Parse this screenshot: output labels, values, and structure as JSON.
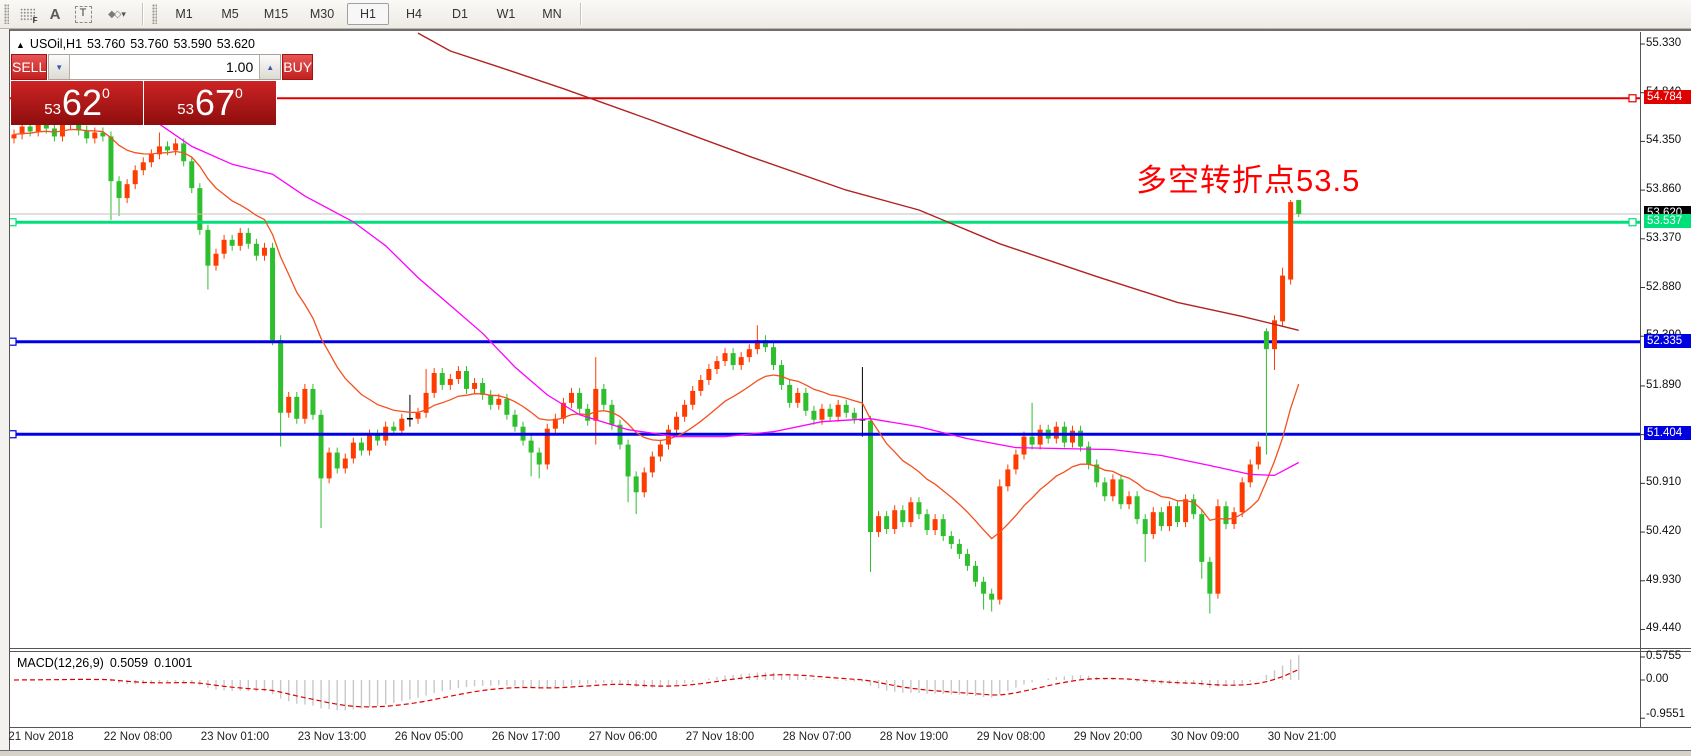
{
  "toolbar": {
    "icons": [
      {
        "name": "order-grid-icon",
        "glyph": "F"
      },
      {
        "name": "text-a-icon",
        "glyph": "A"
      },
      {
        "name": "text-label-icon",
        "glyph": "T"
      },
      {
        "name": "shapes-icon",
        "glyph": "◆◇"
      },
      {
        "name": "shapes-dropdown-caret",
        "glyph": "▾"
      }
    ],
    "timeframes": [
      {
        "label": "M1",
        "active": false
      },
      {
        "label": "M5",
        "active": false
      },
      {
        "label": "M15",
        "active": false
      },
      {
        "label": "M30",
        "active": false
      },
      {
        "label": "H1",
        "active": true
      },
      {
        "label": "H4",
        "active": false
      },
      {
        "label": "D1",
        "active": false
      },
      {
        "label": "W1",
        "active": false
      },
      {
        "label": "MN",
        "active": false
      }
    ]
  },
  "chart_header": {
    "arrow": "▲",
    "symbol": "USOil,H1",
    "open": "53.760",
    "high": "53.760",
    "low": "53.590",
    "close": "53.620"
  },
  "trade_panel": {
    "sell_label": "SELL",
    "buy_label": "BUY",
    "volume": "1.00",
    "spin_down": "▼",
    "spin_up": "▲",
    "sell_price": {
      "small": "53",
      "big": "62",
      "sup": "0"
    },
    "buy_price": {
      "small": "53",
      "big": "67",
      "sup": "0"
    }
  },
  "annotation": {
    "text": "多空转折点53.5",
    "color": "#FF0000"
  },
  "price_axis": {
    "ticks": [
      "55.330",
      "54.840",
      "54.350",
      "53.860",
      "53.370",
      "52.880",
      "52.390",
      "51.890",
      "51.400",
      "50.910",
      "50.420",
      "49.930",
      "49.440"
    ],
    "markers": [
      {
        "value": "54.784",
        "price": 54.784,
        "bg": "#DF0000",
        "fg": "#FFFFFF",
        "name": "resistance-price-label"
      },
      {
        "value": "53.620",
        "price": 53.62,
        "bg": "#000000",
        "fg": "#FFFFFF",
        "name": "last-price-label"
      },
      {
        "value": "53.537",
        "price": 53.537,
        "bg": "#00E07A",
        "fg": "#FFFFFF",
        "name": "pivot-price-label"
      },
      {
        "value": "52.335",
        "price": 52.335,
        "bg": "#0000E0",
        "fg": "#FFFFFF",
        "name": "support1-price-label"
      },
      {
        "value": "51.404",
        "price": 51.404,
        "bg": "#0000E0",
        "fg": "#FFFFFF",
        "name": "support2-price-label"
      }
    ]
  },
  "time_axis": {
    "labels": [
      "21 Nov 2018",
      "22 Nov 08:00",
      "23 Nov 01:00",
      "23 Nov 13:00",
      "26 Nov 05:00",
      "26 Nov 17:00",
      "27 Nov 06:00",
      "27 Nov 18:00",
      "28 Nov 07:00",
      "28 Nov 19:00",
      "29 Nov 08:00",
      "29 Nov 20:00",
      "30 Nov 09:00",
      "30 Nov 21:00"
    ]
  },
  "macd_panel": {
    "label": "MACD(12,26,9)",
    "value": "0.5059",
    "signal_value": "0.1001",
    "scale_labels": [
      "0.5755",
      "0.00",
      "-0.9551"
    ]
  },
  "chart_data": {
    "type": "candlestick",
    "title": "USOil,H1",
    "symbol": "USOil",
    "timeframe": "H1",
    "ohlc_current": {
      "open": 53.76,
      "high": 53.76,
      "low": 53.59,
      "close": 53.62
    },
    "ylim": [
      49.25,
      55.45
    ],
    "price_ticks": [
      55.33,
      54.84,
      54.35,
      53.86,
      53.37,
      52.88,
      52.39,
      51.89,
      51.4,
      50.91,
      50.42,
      49.93,
      49.44
    ],
    "colors": {
      "bull": "#FF3C00",
      "bear": "#2EBE2E",
      "doji": "#000000",
      "ma_fast": "#F4511E",
      "ma_mid": "#FF00FF",
      "ma_slow": "#B22222",
      "hist": "#C8C8C8",
      "signal": "#DF0000",
      "last_line": "#C0C0C0",
      "hline_red": "#DF0000",
      "hline_green": "#00E07A",
      "hline_blue": "#0000E6"
    },
    "hlines": [
      {
        "price": 54.784,
        "color": "#DF0000",
        "width": 2,
        "name": "resistance-line"
      },
      {
        "price": 53.62,
        "color": "#C0C0C0",
        "width": 1,
        "name": "last-price-line"
      },
      {
        "price": 53.537,
        "color": "#00E07A",
        "width": 3,
        "name": "pivot-line"
      },
      {
        "price": 52.335,
        "color": "#0000E6",
        "width": 3,
        "name": "support-line-1"
      },
      {
        "price": 51.404,
        "color": "#0000E6",
        "width": 3,
        "name": "support-line-2"
      }
    ],
    "ma_fast_period": 15,
    "ma_mid_points": [
      [
        17,
        54.58
      ],
      [
        22,
        54.3
      ],
      [
        27,
        54.12
      ],
      [
        32,
        54.02
      ],
      [
        36,
        53.8
      ],
      [
        42,
        53.54
      ],
      [
        46,
        53.3
      ],
      [
        50,
        52.98
      ],
      [
        54,
        52.7
      ],
      [
        58,
        52.42
      ],
      [
        62,
        52.08
      ],
      [
        66,
        51.8
      ],
      [
        70,
        51.6
      ],
      [
        76,
        51.45
      ],
      [
        82,
        51.38
      ],
      [
        88,
        51.38
      ],
      [
        94,
        51.43
      ],
      [
        100,
        51.53
      ],
      [
        106,
        51.56
      ],
      [
        112,
        51.48
      ],
      [
        118,
        51.36
      ],
      [
        124,
        51.27
      ],
      [
        130,
        51.26
      ],
      [
        136,
        51.25
      ],
      [
        142,
        51.19
      ],
      [
        148,
        51.09
      ],
      [
        153,
        51.0
      ],
      [
        156,
        50.99
      ],
      [
        159,
        51.12
      ]
    ],
    "ma_slow_points": [
      [
        50,
        55.44
      ],
      [
        54,
        55.26
      ],
      [
        60,
        55.1
      ],
      [
        68,
        54.88
      ],
      [
        79,
        54.56
      ],
      [
        91,
        54.2
      ],
      [
        103,
        53.86
      ],
      [
        112,
        53.66
      ],
      [
        122,
        53.32
      ],
      [
        134,
        52.99
      ],
      [
        144,
        52.73
      ],
      [
        152,
        52.59
      ],
      [
        157,
        52.49
      ],
      [
        159,
        52.45
      ]
    ],
    "macd": {
      "fast": 12,
      "slow": 26,
      "signal": 9,
      "current": 0.5059,
      "signal_current": 0.1001,
      "scale_max": 0.5755,
      "scale_min": -0.9551
    },
    "candles": [
      [
        54.38,
        54.47,
        54.33,
        54.42
      ],
      [
        54.42,
        54.55,
        54.37,
        54.5
      ],
      [
        54.5,
        54.55,
        54.4,
        54.45
      ],
      [
        54.45,
        54.6,
        54.4,
        54.55
      ],
      [
        54.55,
        54.6,
        54.43,
        54.48
      ],
      [
        54.48,
        54.53,
        54.35,
        54.4
      ],
      [
        54.4,
        54.57,
        54.35,
        54.52
      ],
      [
        54.52,
        54.63,
        54.47,
        54.58
      ],
      [
        54.58,
        54.63,
        54.41,
        54.46
      ],
      [
        54.46,
        54.51,
        54.33,
        54.38
      ],
      [
        54.38,
        54.49,
        54.33,
        54.44
      ],
      [
        54.44,
        54.49,
        54.35,
        54.4
      ],
      [
        54.4,
        54.45,
        53.56,
        53.95
      ],
      [
        53.95,
        54.0,
        53.6,
        53.78
      ],
      [
        53.78,
        53.97,
        53.73,
        53.92
      ],
      [
        53.92,
        54.11,
        53.87,
        54.06
      ],
      [
        54.06,
        54.19,
        54.01,
        54.14
      ],
      [
        54.14,
        54.27,
        54.09,
        54.22
      ],
      [
        54.22,
        54.44,
        54.17,
        54.3
      ],
      [
        54.3,
        54.35,
        54.21,
        54.26
      ],
      [
        54.26,
        54.38,
        54.21,
        54.33
      ],
      [
        54.33,
        54.38,
        54.1,
        54.15
      ],
      [
        54.15,
        54.2,
        53.83,
        53.88
      ],
      [
        53.88,
        53.93,
        53.41,
        53.46
      ],
      [
        53.46,
        53.51,
        52.86,
        53.1
      ],
      [
        53.1,
        53.27,
        53.05,
        53.22
      ],
      [
        53.22,
        53.41,
        53.17,
        53.36
      ],
      [
        53.36,
        53.41,
        53.25,
        53.3
      ],
      [
        53.3,
        53.48,
        53.25,
        53.43
      ],
      [
        53.43,
        53.48,
        53.27,
        53.32
      ],
      [
        53.32,
        53.37,
        53.15,
        53.2
      ],
      [
        53.2,
        53.33,
        53.15,
        53.28
      ],
      [
        53.28,
        53.33,
        52.3,
        52.35
      ],
      [
        52.35,
        52.4,
        51.28,
        51.62
      ],
      [
        51.62,
        51.83,
        51.57,
        51.78
      ],
      [
        51.78,
        51.83,
        51.51,
        51.56
      ],
      [
        51.56,
        51.91,
        51.51,
        51.86
      ],
      [
        51.86,
        51.91,
        51.55,
        51.6
      ],
      [
        51.6,
        51.65,
        50.46,
        50.96
      ],
      [
        50.96,
        51.27,
        50.91,
        51.22
      ],
      [
        51.22,
        51.27,
        51.01,
        51.06
      ],
      [
        51.06,
        51.21,
        51.01,
        51.16
      ],
      [
        51.16,
        51.37,
        51.11,
        51.32
      ],
      [
        51.32,
        51.37,
        51.19,
        51.24
      ],
      [
        51.24,
        51.45,
        51.19,
        51.4
      ],
      [
        51.4,
        51.45,
        51.29,
        51.34
      ],
      [
        51.34,
        51.53,
        51.29,
        51.48
      ],
      [
        51.48,
        51.53,
        51.39,
        51.44
      ],
      [
        51.44,
        51.61,
        51.39,
        51.56
      ],
      [
        51.56,
        51.8,
        51.48,
        51.56
      ],
      [
        51.56,
        51.67,
        51.51,
        51.62
      ],
      [
        51.62,
        52.06,
        51.57,
        51.82
      ],
      [
        51.82,
        52.07,
        51.77,
        52.02
      ],
      [
        52.02,
        52.07,
        51.85,
        51.9
      ],
      [
        51.9,
        52.01,
        51.85,
        51.96
      ],
      [
        51.96,
        52.09,
        51.91,
        52.04
      ],
      [
        52.04,
        52.09,
        51.81,
        51.86
      ],
      [
        51.86,
        51.97,
        51.81,
        51.92
      ],
      [
        51.92,
        51.97,
        51.75,
        51.8
      ],
      [
        51.8,
        51.85,
        51.65,
        51.7
      ],
      [
        51.7,
        51.81,
        51.65,
        51.76
      ],
      [
        51.76,
        51.81,
        51.55,
        51.6
      ],
      [
        51.6,
        51.65,
        51.43,
        51.48
      ],
      [
        51.48,
        51.53,
        51.29,
        51.34
      ],
      [
        51.34,
        51.39,
        50.98,
        51.22
      ],
      [
        51.22,
        51.27,
        50.96,
        51.1
      ],
      [
        51.1,
        51.51,
        51.05,
        51.46
      ],
      [
        51.46,
        51.61,
        51.41,
        51.56
      ],
      [
        51.56,
        51.77,
        51.51,
        51.72
      ],
      [
        51.72,
        51.87,
        51.67,
        51.82
      ],
      [
        51.82,
        51.87,
        51.61,
        51.66
      ],
      [
        51.66,
        51.71,
        51.49,
        51.54
      ],
      [
        51.54,
        52.18,
        51.3,
        51.86
      ],
      [
        51.86,
        51.91,
        51.65,
        51.7
      ],
      [
        51.7,
        51.75,
        51.45,
        51.5
      ],
      [
        51.5,
        51.55,
        51.25,
        51.3
      ],
      [
        51.3,
        51.35,
        50.72,
        50.98
      ],
      [
        50.98,
        51.03,
        50.6,
        50.82
      ],
      [
        50.82,
        51.07,
        50.77,
        51.02
      ],
      [
        51.02,
        51.23,
        50.97,
        51.18
      ],
      [
        51.18,
        51.35,
        51.13,
        51.3
      ],
      [
        51.3,
        51.5,
        51.25,
        51.45
      ],
      [
        51.45,
        51.63,
        51.4,
        51.58
      ],
      [
        51.58,
        51.75,
        51.53,
        51.7
      ],
      [
        51.7,
        51.89,
        51.65,
        51.84
      ],
      [
        51.84,
        52.0,
        51.79,
        51.95
      ],
      [
        51.95,
        52.11,
        51.9,
        52.06
      ],
      [
        52.06,
        52.19,
        52.01,
        52.14
      ],
      [
        52.14,
        52.27,
        52.09,
        52.22
      ],
      [
        52.22,
        52.27,
        52.05,
        52.1
      ],
      [
        52.1,
        52.23,
        52.05,
        52.18
      ],
      [
        52.18,
        52.31,
        52.13,
        52.26
      ],
      [
        52.26,
        52.5,
        52.21,
        52.35
      ],
      [
        52.35,
        52.4,
        52.23,
        52.28
      ],
      [
        52.28,
        52.33,
        52.05,
        52.1
      ],
      [
        52.1,
        52.15,
        51.85,
        51.9
      ],
      [
        51.9,
        51.95,
        51.67,
        51.72
      ],
      [
        51.72,
        51.87,
        51.67,
        51.82
      ],
      [
        51.82,
        51.87,
        51.59,
        51.64
      ],
      [
        51.64,
        51.69,
        51.5,
        51.55
      ],
      [
        51.55,
        51.71,
        51.5,
        51.66
      ],
      [
        51.66,
        51.71,
        51.53,
        51.58
      ],
      [
        51.58,
        51.75,
        51.53,
        51.7
      ],
      [
        51.7,
        51.75,
        51.57,
        51.62
      ],
      [
        51.62,
        51.67,
        51.51,
        51.56
      ],
      [
        51.55,
        52.08,
        51.38,
        51.55
      ],
      [
        51.54,
        51.59,
        50.02,
        50.42
      ],
      [
        50.42,
        50.63,
        50.37,
        50.58
      ],
      [
        50.58,
        50.63,
        50.4,
        50.45
      ],
      [
        50.45,
        50.69,
        50.4,
        50.64
      ],
      [
        50.64,
        50.69,
        50.47,
        50.52
      ],
      [
        50.52,
        50.77,
        50.47,
        50.72
      ],
      [
        50.72,
        50.77,
        50.55,
        50.6
      ],
      [
        50.6,
        50.65,
        50.39,
        50.44
      ],
      [
        50.44,
        50.6,
        50.39,
        50.55
      ],
      [
        50.55,
        50.6,
        50.33,
        50.38
      ],
      [
        50.38,
        50.43,
        50.25,
        50.3
      ],
      [
        50.3,
        50.35,
        50.15,
        50.2
      ],
      [
        50.2,
        50.25,
        50.03,
        50.08
      ],
      [
        50.08,
        50.13,
        49.87,
        49.92
      ],
      [
        49.92,
        49.97,
        49.64,
        49.8
      ],
      [
        49.8,
        49.85,
        49.62,
        49.74
      ],
      [
        49.74,
        50.95,
        49.69,
        50.88
      ],
      [
        50.88,
        51.1,
        50.83,
        51.05
      ],
      [
        51.05,
        51.25,
        51.0,
        51.2
      ],
      [
        51.2,
        51.43,
        51.15,
        51.38
      ],
      [
        51.38,
        51.72,
        51.25,
        51.3
      ],
      [
        51.3,
        51.5,
        51.25,
        51.45
      ],
      [
        51.45,
        51.5,
        51.31,
        51.36
      ],
      [
        51.36,
        51.53,
        51.31,
        51.48
      ],
      [
        51.48,
        51.53,
        51.27,
        51.32
      ],
      [
        51.32,
        51.49,
        51.27,
        51.44
      ],
      [
        51.44,
        51.49,
        51.23,
        51.28
      ],
      [
        51.28,
        51.33,
        51.05,
        51.1
      ],
      [
        51.1,
        51.15,
        50.87,
        50.92
      ],
      [
        50.92,
        50.97,
        50.73,
        50.78
      ],
      [
        50.78,
        51.0,
        50.73,
        50.95
      ],
      [
        50.95,
        51.0,
        50.65,
        50.7
      ],
      [
        50.7,
        50.83,
        50.65,
        50.78
      ],
      [
        50.78,
        50.83,
        50.5,
        50.55
      ],
      [
        50.55,
        50.6,
        50.12,
        50.4
      ],
      [
        50.4,
        50.67,
        50.35,
        50.62
      ],
      [
        50.62,
        50.67,
        50.43,
        50.48
      ],
      [
        50.48,
        50.73,
        50.43,
        50.68
      ],
      [
        50.68,
        50.73,
        50.47,
        50.52
      ],
      [
        50.52,
        50.8,
        50.47,
        50.75
      ],
      [
        50.75,
        50.8,
        50.55,
        50.6
      ],
      [
        50.6,
        50.65,
        49.95,
        50.12
      ],
      [
        50.12,
        50.17,
        49.6,
        49.8
      ],
      [
        49.8,
        50.75,
        49.75,
        50.68
      ],
      [
        50.68,
        50.73,
        50.45,
        50.5
      ],
      [
        50.5,
        50.67,
        50.45,
        50.62
      ],
      [
        50.62,
        50.97,
        50.57,
        50.92
      ],
      [
        50.92,
        51.15,
        50.87,
        51.1
      ],
      [
        51.1,
        51.33,
        51.05,
        51.28
      ],
      [
        52.44,
        52.47,
        51.2,
        52.26
      ],
      [
        52.26,
        52.6,
        52.05,
        52.55
      ],
      [
        52.54,
        53.08,
        52.49,
        53.0
      ],
      [
        52.96,
        53.76,
        52.91,
        53.74
      ],
      [
        53.76,
        53.76,
        53.59,
        53.62
      ]
    ]
  }
}
